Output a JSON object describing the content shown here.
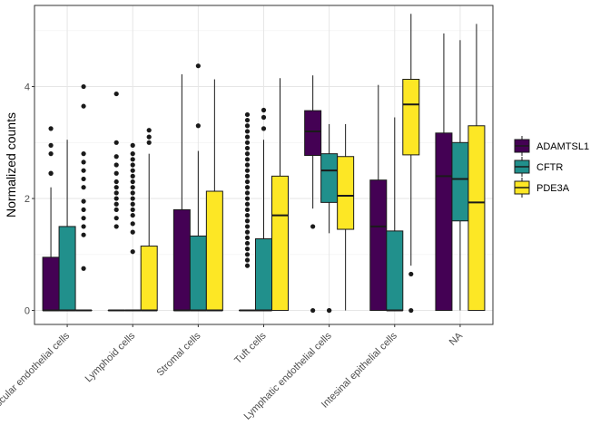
{
  "chart_data": {
    "type": "boxplot",
    "ylabel": "Normalized counts",
    "xlabel": "",
    "ylim": [
      -0.25,
      5.45
    ],
    "yticks": [
      0,
      2,
      4
    ],
    "grid": true,
    "legend_position": "right",
    "categories": [
      "Vascular endothelial cells",
      "Lymphoid cells",
      "Stromal cells",
      "Tuft cells",
      "Lymphatic endothelial cells",
      "Intesinal epithelial cells",
      "NA"
    ],
    "series": [
      {
        "name": "ADAMTSL1",
        "color": "#440154",
        "boxes": [
          {
            "q1": 0,
            "median": 0,
            "q3": 0.95,
            "wlow": 0,
            "whigh": 2.2,
            "outliers": [
              2.45,
              2.45,
              2.8,
              2.95,
              3.25
            ]
          },
          {
            "q1": 0,
            "median": 0,
            "q3": 0,
            "wlow": 0,
            "whigh": 0,
            "outliers": [
              1.5,
              1.65,
              1.8,
              1.9,
              2.0,
              2.1,
              2.2,
              2.3,
              2.45,
              2.6,
              2.75,
              3.0,
              3.87
            ]
          },
          {
            "q1": 0,
            "median": 0,
            "q3": 1.8,
            "wlow": 0,
            "whigh": 4.22,
            "outliers": []
          },
          {
            "q1": 0,
            "median": 0,
            "q3": 0,
            "wlow": 0,
            "whigh": 0,
            "outliers": [
              0.8,
              0.9,
              1.0,
              1.1,
              1.2,
              1.3,
              1.4,
              1.5,
              1.6,
              1.7,
              1.8,
              1.9,
              2.0,
              2.1,
              2.2,
              2.3,
              2.4,
              2.5,
              2.6,
              2.7,
              2.8,
              2.9,
              3.0,
              3.1,
              3.2,
              3.3,
              3.4,
              3.5
            ]
          },
          {
            "q1": 2.77,
            "median": 3.2,
            "q3": 3.57,
            "wlow": 1.82,
            "whigh": 4.2,
            "outliers": [
              0,
              1.5
            ]
          },
          {
            "q1": 0,
            "median": 1.5,
            "q3": 2.33,
            "wlow": 0,
            "whigh": 4.03,
            "outliers": []
          },
          {
            "q1": 0,
            "median": 2.4,
            "q3": 3.17,
            "wlow": 0,
            "whigh": 4.95,
            "outliers": []
          }
        ]
      },
      {
        "name": "CFTR",
        "color": "#21908C",
        "boxes": [
          {
            "q1": 0,
            "median": 0,
            "q3": 1.5,
            "wlow": 0,
            "whigh": 3.05,
            "outliers": []
          },
          {
            "q1": 0,
            "median": 0,
            "q3": 0,
            "wlow": 0,
            "whigh": 0,
            "outliers": [
              1.05,
              1.4,
              1.55,
              1.7,
              1.8,
              1.9,
              2.0,
              2.1,
              2.2,
              2.3,
              2.4,
              2.5,
              2.6,
              2.7,
              2.8,
              2.95
            ]
          },
          {
            "q1": 0,
            "median": 0,
            "q3": 1.33,
            "wlow": 0,
            "whigh": 2.85,
            "outliers": [
              3.3,
              4.37
            ]
          },
          {
            "q1": 0,
            "median": 0,
            "q3": 1.28,
            "wlow": 0,
            "whigh": 3.05,
            "outliers": [
              3.25,
              3.45,
              3.58
            ]
          },
          {
            "q1": 1.93,
            "median": 2.5,
            "q3": 2.8,
            "wlow": 1.38,
            "whigh": 3.33,
            "outliers": [
              0,
              0
            ]
          },
          {
            "q1": 0,
            "median": 0,
            "q3": 1.42,
            "wlow": 0,
            "whigh": 3.45,
            "outliers": []
          },
          {
            "q1": 1.6,
            "median": 2.35,
            "q3": 3.0,
            "wlow": 0,
            "whigh": 4.83,
            "outliers": []
          }
        ]
      },
      {
        "name": "PDE3A",
        "color": "#FDE725",
        "boxes": [
          {
            "q1": 0,
            "median": 0,
            "q3": 0,
            "wlow": 0,
            "whigh": 0,
            "outliers": [
              0.75,
              1.35,
              1.5,
              1.65,
              1.8,
              1.95,
              2.2,
              2.35,
              2.5,
              2.65,
              2.8,
              3.65,
              4.0
            ]
          },
          {
            "q1": 0,
            "median": 0,
            "q3": 1.15,
            "wlow": 0,
            "whigh": 2.8,
            "outliers": [
              3.0,
              3.1,
              3.22
            ]
          },
          {
            "q1": 0,
            "median": 0,
            "q3": 2.13,
            "wlow": 0,
            "whigh": 4.13,
            "outliers": []
          },
          {
            "q1": 0,
            "median": 1.7,
            "q3": 2.4,
            "wlow": 0,
            "whigh": 4.15,
            "outliers": []
          },
          {
            "q1": 1.45,
            "median": 2.05,
            "q3": 2.75,
            "wlow": 0,
            "whigh": 3.33,
            "outliers": []
          },
          {
            "q1": 2.78,
            "median": 3.68,
            "q3": 4.13,
            "wlow": 0.8,
            "whigh": 5.3,
            "outliers": [
              0,
              0.65
            ]
          },
          {
            "q1": 0,
            "median": 1.93,
            "q3": 3.3,
            "wlow": 0,
            "whigh": 5.12,
            "outliers": []
          }
        ]
      }
    ]
  }
}
